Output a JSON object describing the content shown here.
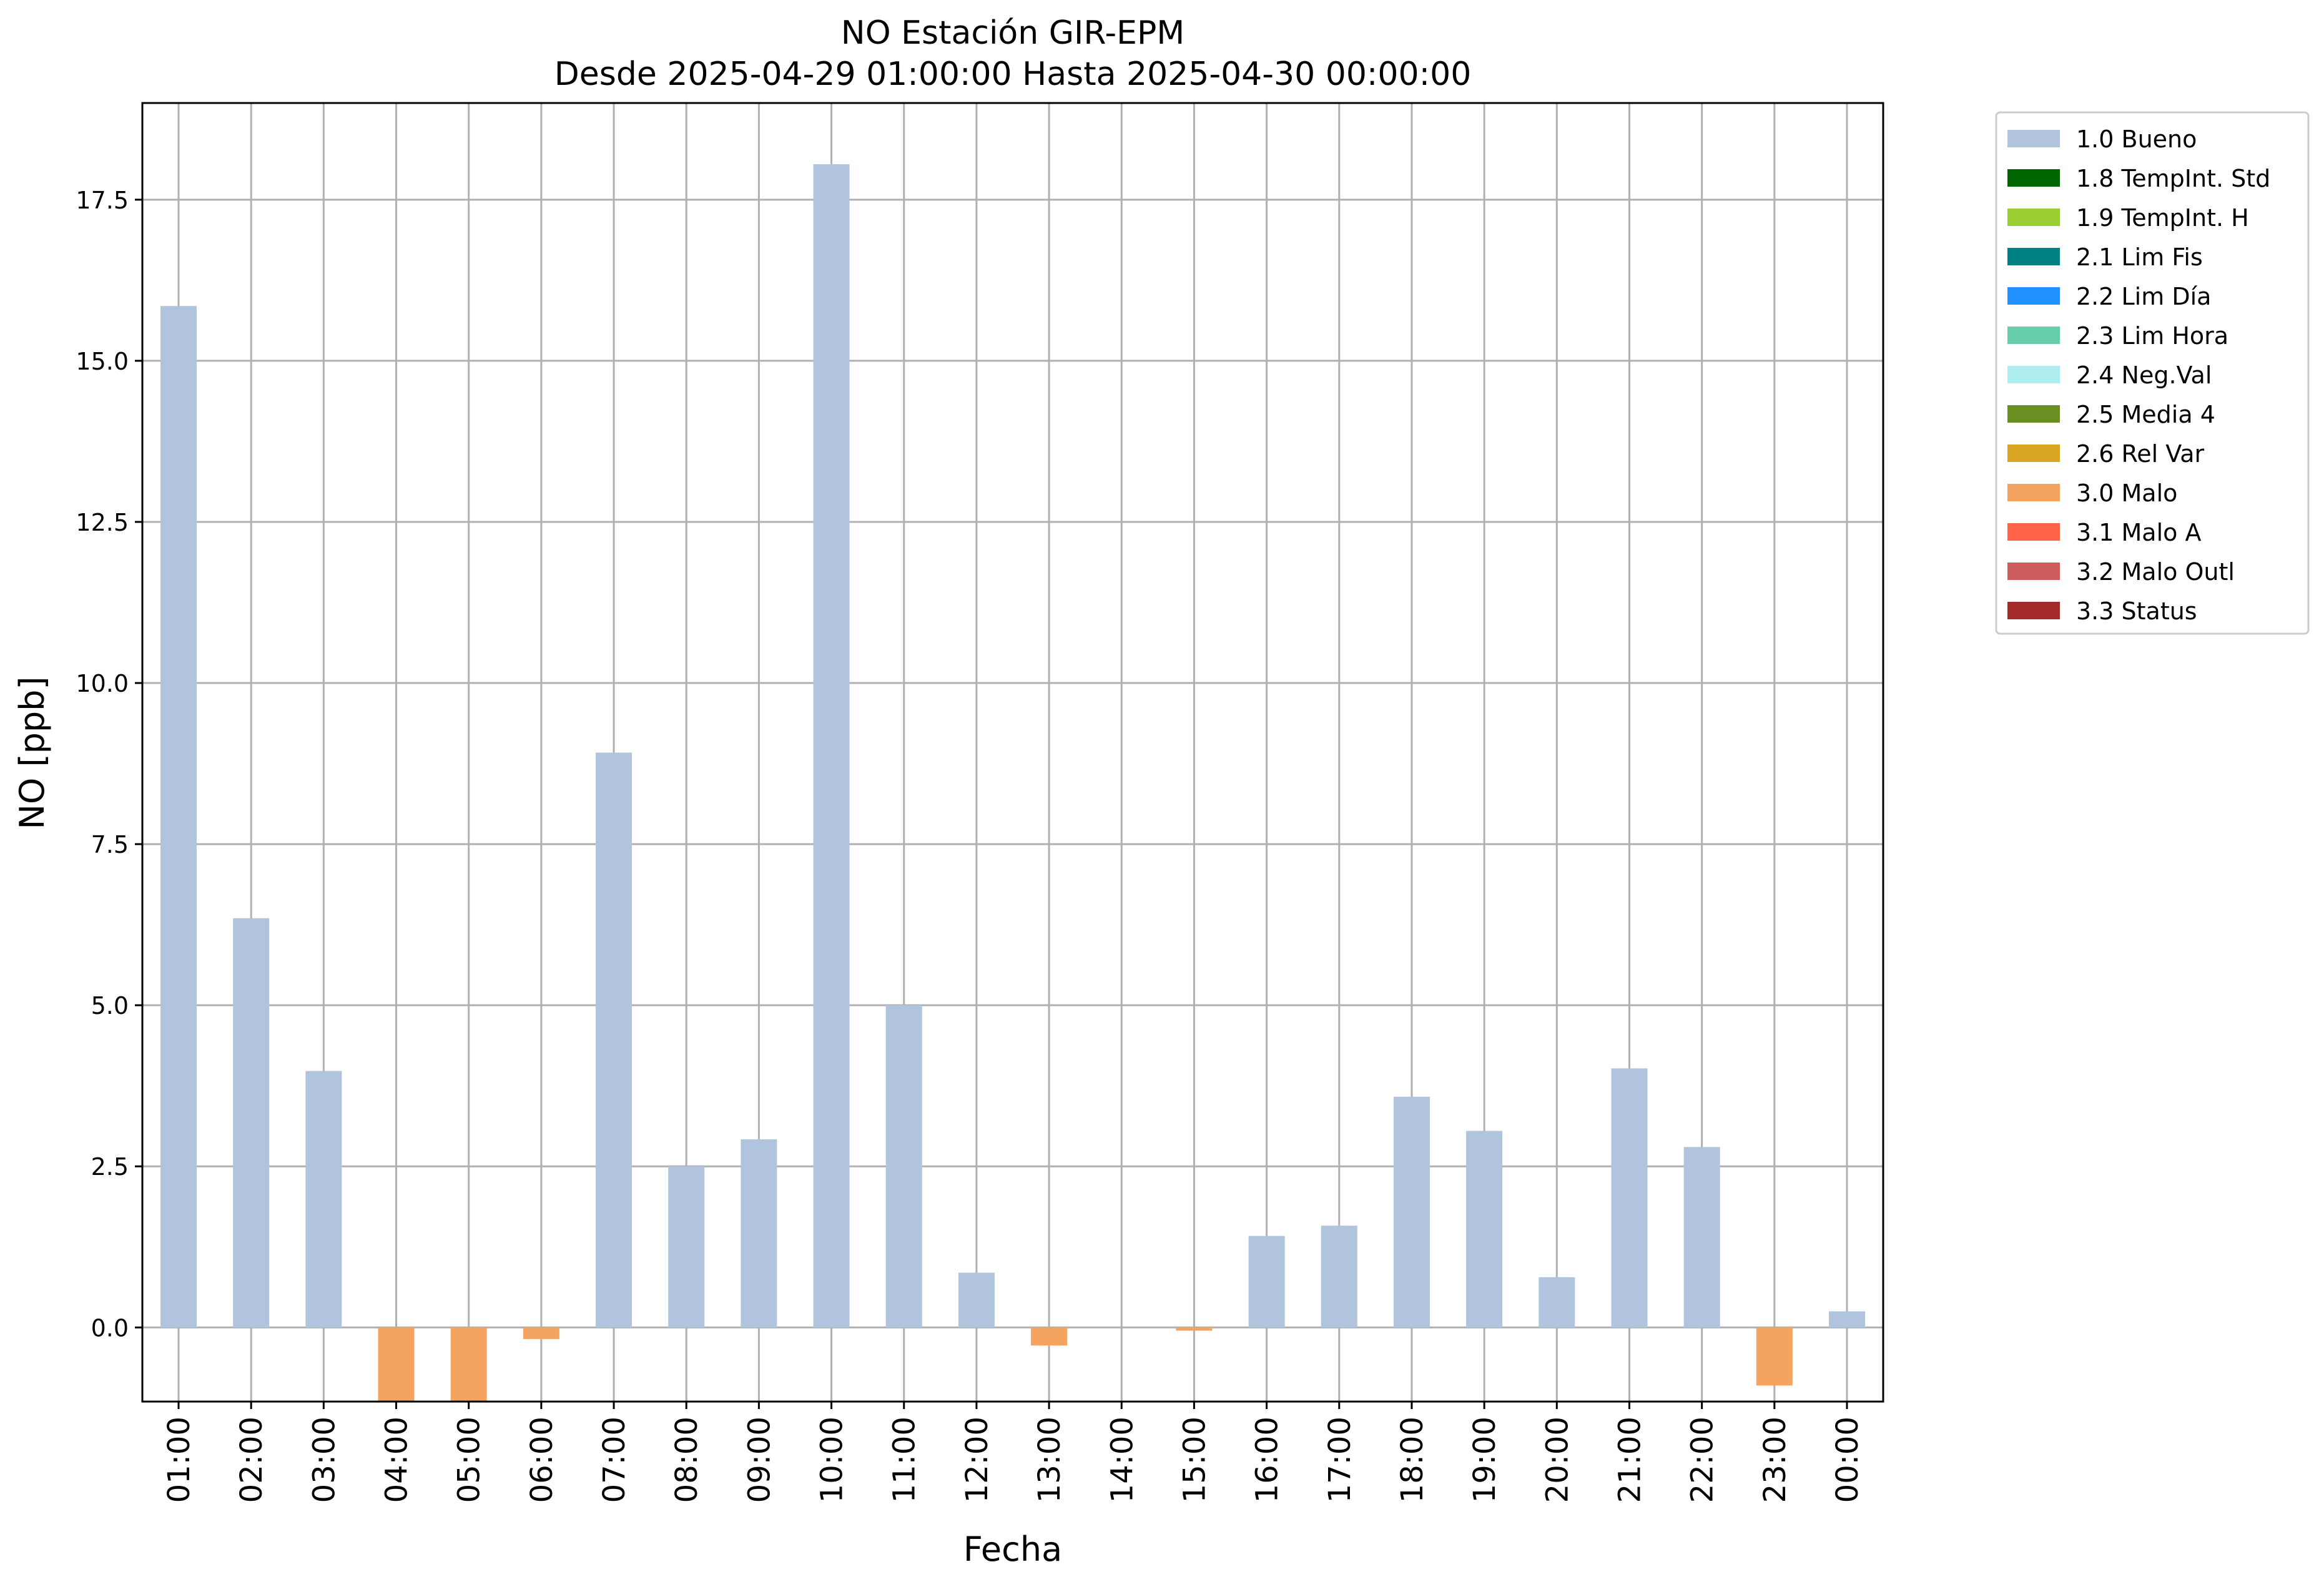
{
  "chart_data": {
    "type": "bar",
    "title": "NO Estación GIR-EPM",
    "subtitle": "Desde 2025-04-29 01:00:00 Hasta 2025-04-30 00:00:00",
    "xlabel": "Fecha",
    "ylabel": "NO [ppb]",
    "ylim": [
      -1.15,
      19.0
    ],
    "yticks": [
      0.0,
      2.5,
      5.0,
      7.5,
      10.0,
      12.5,
      15.0,
      17.5
    ],
    "ytick_labels": [
      "0.0",
      "2.5",
      "5.0",
      "7.5",
      "10.0",
      "12.5",
      "15.0",
      "17.5"
    ],
    "grid": true,
    "legend_position": "outside-top-right",
    "categories": [
      "01:00",
      "02:00",
      "03:00",
      "04:00",
      "05:00",
      "06:00",
      "07:00",
      "08:00",
      "09:00",
      "10:00",
      "11:00",
      "12:00",
      "13:00",
      "14:00",
      "15:00",
      "16:00",
      "17:00",
      "18:00",
      "19:00",
      "20:00",
      "21:00",
      "22:00",
      "23:00",
      "00:00"
    ],
    "values": [
      15.85,
      6.35,
      3.98,
      -1.15,
      -1.15,
      -0.18,
      8.92,
      2.5,
      2.92,
      18.05,
      5.0,
      0.85,
      -0.28,
      null,
      -0.05,
      1.42,
      1.58,
      3.58,
      3.05,
      0.78,
      4.02,
      2.8,
      -0.9,
      0.25
    ],
    "flags": [
      "1.0 Bueno",
      "1.0 Bueno",
      "1.0 Bueno",
      "3.0 Malo",
      "3.0 Malo",
      "3.0 Malo",
      "1.0 Bueno",
      "1.0 Bueno",
      "1.0 Bueno",
      "1.0 Bueno",
      "1.0 Bueno",
      "1.0 Bueno",
      "3.0 Malo",
      null,
      "3.0 Malo",
      "1.0 Bueno",
      "1.0 Bueno",
      "1.0 Bueno",
      "1.0 Bueno",
      "1.0 Bueno",
      "1.0 Bueno",
      "1.0 Bueno",
      "3.0 Malo",
      "1.0 Bueno"
    ],
    "legend": [
      {
        "label": "1.0 Bueno",
        "color": "#b0c4de"
      },
      {
        "label": "1.8 TempInt. Std",
        "color": "#006400"
      },
      {
        "label": "1.9 TempInt. H",
        "color": "#9acd32"
      },
      {
        "label": "2.1 Lim Fis",
        "color": "#008080"
      },
      {
        "label": "2.2 Lim Día",
        "color": "#1e90ff"
      },
      {
        "label": "2.3 Lim Hora",
        "color": "#66cdaa"
      },
      {
        "label": "2.4 Neg.Val",
        "color": "#afeeee"
      },
      {
        "label": "2.5 Media 4",
        "color": "#6b8e23"
      },
      {
        "label": "2.6 Rel Var",
        "color": "#daa520"
      },
      {
        "label": "3.0 Malo",
        "color": "#f4a460"
      },
      {
        "label": "3.1 Malo A",
        "color": "#ff6347"
      },
      {
        "label": "3.2 Malo Outl",
        "color": "#cd5c5c"
      },
      {
        "label": "3.3 Status",
        "color": "#a52a2a"
      }
    ]
  }
}
